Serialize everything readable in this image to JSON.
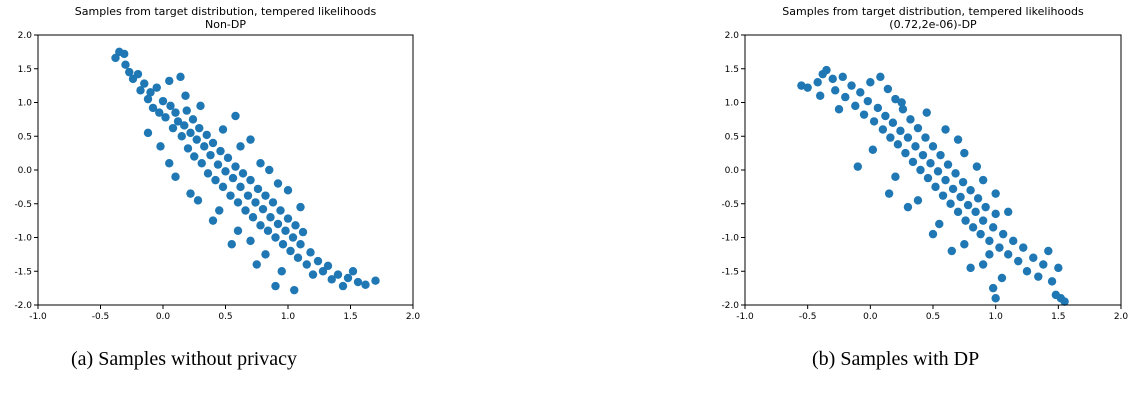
{
  "figure": {
    "captions": [
      {
        "tag": "(a)",
        "text": "Samples without privacy"
      },
      {
        "tag": "(b)",
        "text": "Samples with DP"
      }
    ]
  },
  "chart_data": [
    {
      "type": "scatter",
      "title": "Samples from target distribution, tempered likelihoods",
      "subtitle": "Non-DP",
      "xlabel": "",
      "ylabel": "",
      "xlim": [
        -1.0,
        2.0
      ],
      "ylim": [
        -2.0,
        2.0
      ],
      "xticks": [
        "-1.0",
        "-0.5",
        "0.0",
        "0.5",
        "1.0",
        "1.5",
        "2.0"
      ],
      "yticks": [
        "2.0",
        "1.5",
        "1.0",
        "0.5",
        "0.0",
        "-0.5",
        "-1.0",
        "-1.5",
        "-2.0"
      ],
      "grid": false,
      "marker_color": "#1f77b4",
      "series": [
        {
          "points": [
            [
              -0.38,
              1.66
            ],
            [
              -0.35,
              1.75
            ],
            [
              -0.31,
              1.72
            ],
            [
              -0.3,
              1.56
            ],
            [
              -0.27,
              1.45
            ],
            [
              -0.24,
              1.35
            ],
            [
              -0.2,
              1.42
            ],
            [
              -0.18,
              1.18
            ],
            [
              -0.15,
              1.28
            ],
            [
              -0.12,
              1.05
            ],
            [
              -0.1,
              1.15
            ],
            [
              -0.08,
              0.92
            ],
            [
              -0.05,
              1.22
            ],
            [
              -0.03,
              0.85
            ],
            [
              0.0,
              1.02
            ],
            [
              0.02,
              0.78
            ],
            [
              0.05,
              1.32
            ],
            [
              0.06,
              0.95
            ],
            [
              0.08,
              0.62
            ],
            [
              0.1,
              0.85
            ],
            [
              0.12,
              0.72
            ],
            [
              0.14,
              1.38
            ],
            [
              0.15,
              0.5
            ],
            [
              0.17,
              0.66
            ],
            [
              0.19,
              0.88
            ],
            [
              0.2,
              0.32
            ],
            [
              0.22,
              0.55
            ],
            [
              0.24,
              0.75
            ],
            [
              0.25,
              0.2
            ],
            [
              0.27,
              0.45
            ],
            [
              0.29,
              0.62
            ],
            [
              0.31,
              0.1
            ],
            [
              0.33,
              0.35
            ],
            [
              0.35,
              0.52
            ],
            [
              0.36,
              -0.05
            ],
            [
              0.38,
              0.22
            ],
            [
              0.4,
              0.4
            ],
            [
              0.42,
              -0.15
            ],
            [
              0.44,
              0.08
            ],
            [
              0.46,
              0.28
            ],
            [
              0.48,
              -0.25
            ],
            [
              0.5,
              -0.02
            ],
            [
              0.52,
              0.18
            ],
            [
              0.54,
              -0.38
            ],
            [
              0.56,
              -0.12
            ],
            [
              0.58,
              0.05
            ],
            [
              0.6,
              -0.48
            ],
            [
              0.62,
              -0.25
            ],
            [
              0.64,
              -0.05
            ],
            [
              0.66,
              -0.6
            ],
            [
              0.68,
              -0.38
            ],
            [
              0.7,
              -0.15
            ],
            [
              0.72,
              -0.7
            ],
            [
              0.74,
              -0.48
            ],
            [
              0.76,
              -0.28
            ],
            [
              0.78,
              -0.82
            ],
            [
              0.8,
              -0.58
            ],
            [
              0.82,
              -0.38
            ],
            [
              0.84,
              -0.9
            ],
            [
              0.86,
              -0.7
            ],
            [
              0.88,
              -0.48
            ],
            [
              0.9,
              -1.0
            ],
            [
              0.92,
              -0.8
            ],
            [
              0.94,
              -0.6
            ],
            [
              0.96,
              -1.1
            ],
            [
              0.98,
              -0.9
            ],
            [
              1.0,
              -0.72
            ],
            [
              1.02,
              -1.2
            ],
            [
              1.04,
              -1.0
            ],
            [
              1.06,
              -0.82
            ],
            [
              1.08,
              -1.3
            ],
            [
              1.1,
              -1.1
            ],
            [
              1.12,
              -0.92
            ],
            [
              1.15,
              -1.4
            ],
            [
              1.18,
              -1.22
            ],
            [
              1.2,
              -1.55
            ],
            [
              1.24,
              -1.35
            ],
            [
              1.28,
              -1.5
            ],
            [
              1.32,
              -1.42
            ],
            [
              1.35,
              -1.62
            ],
            [
              1.4,
              -1.55
            ],
            [
              1.44,
              -1.72
            ],
            [
              1.48,
              -1.6
            ],
            [
              1.52,
              -1.5
            ],
            [
              1.56,
              -1.66
            ],
            [
              1.62,
              -1.7
            ],
            [
              1.7,
              -1.64
            ],
            [
              0.9,
              -1.72
            ],
            [
              1.05,
              -1.78
            ],
            [
              0.75,
              -1.4
            ],
            [
              0.55,
              -1.1
            ],
            [
              0.4,
              -0.75
            ],
            [
              0.22,
              -0.35
            ],
            [
              0.05,
              0.1
            ],
            [
              -0.12,
              0.55
            ],
            [
              0.58,
              0.8
            ],
            [
              0.48,
              0.6
            ],
            [
              0.62,
              0.35
            ],
            [
              0.78,
              0.1
            ],
            [
              0.92,
              -0.2
            ],
            [
              1.0,
              -0.3
            ],
            [
              1.1,
              -0.55
            ],
            [
              0.3,
              0.95
            ],
            [
              0.18,
              1.1
            ],
            [
              0.7,
              0.45
            ],
            [
              0.85,
              0.0
            ],
            [
              -0.02,
              0.35
            ],
            [
              0.1,
              -0.1
            ],
            [
              0.28,
              -0.45
            ],
            [
              0.45,
              -0.6
            ],
            [
              0.6,
              -0.9
            ],
            [
              0.7,
              -1.05
            ],
            [
              0.82,
              -1.25
            ],
            [
              0.95,
              -1.5
            ]
          ]
        }
      ]
    },
    {
      "type": "scatter",
      "title": "Samples from target distribution, tempered likelihoods",
      "subtitle": "(0.72,2e-06)-DP",
      "xlabel": "",
      "ylabel": "",
      "xlim": [
        -1.0,
        2.0
      ],
      "ylim": [
        -2.0,
        2.0
      ],
      "xticks": [
        "-1.0",
        "-0.5",
        "0.0",
        "0.5",
        "1.0",
        "1.5",
        "2.0"
      ],
      "yticks": [
        "2.0",
        "1.5",
        "1.0",
        "0.5",
        "0.0",
        "-0.5",
        "-1.0",
        "-1.5",
        "-2.0"
      ],
      "grid": false,
      "marker_color": "#1f77b4",
      "series": [
        {
          "points": [
            [
              -0.55,
              1.25
            ],
            [
              -0.5,
              1.22
            ],
            [
              -0.42,
              1.3
            ],
            [
              -0.38,
              1.42
            ],
            [
              -0.35,
              1.48
            ],
            [
              -0.3,
              1.35
            ],
            [
              -0.28,
              1.18
            ],
            [
              -0.22,
              1.38
            ],
            [
              -0.2,
              1.08
            ],
            [
              -0.15,
              1.25
            ],
            [
              -0.12,
              0.95
            ],
            [
              -0.08,
              1.15
            ],
            [
              -0.05,
              0.82
            ],
            [
              -0.02,
              1.02
            ],
            [
              0.0,
              1.3
            ],
            [
              0.03,
              0.72
            ],
            [
              0.06,
              0.92
            ],
            [
              0.08,
              1.38
            ],
            [
              0.1,
              0.6
            ],
            [
              0.12,
              0.8
            ],
            [
              0.14,
              1.2
            ],
            [
              0.16,
              0.48
            ],
            [
              0.18,
              0.7
            ],
            [
              0.2,
              1.05
            ],
            [
              0.22,
              0.38
            ],
            [
              0.24,
              0.58
            ],
            [
              0.26,
              0.9
            ],
            [
              0.28,
              0.25
            ],
            [
              0.3,
              0.48
            ],
            [
              0.32,
              0.75
            ],
            [
              0.34,
              0.12
            ],
            [
              0.36,
              0.35
            ],
            [
              0.38,
              0.62
            ],
            [
              0.4,
              0.0
            ],
            [
              0.42,
              0.22
            ],
            [
              0.44,
              0.48
            ],
            [
              0.46,
              -0.12
            ],
            [
              0.48,
              0.1
            ],
            [
              0.5,
              0.35
            ],
            [
              0.52,
              -0.25
            ],
            [
              0.54,
              -0.02
            ],
            [
              0.56,
              0.22
            ],
            [
              0.58,
              -0.38
            ],
            [
              0.6,
              -0.15
            ],
            [
              0.62,
              0.08
            ],
            [
              0.64,
              -0.5
            ],
            [
              0.66,
              -0.28
            ],
            [
              0.68,
              -0.05
            ],
            [
              0.7,
              -0.62
            ],
            [
              0.72,
              -0.4
            ],
            [
              0.74,
              -0.18
            ],
            [
              0.76,
              -0.75
            ],
            [
              0.78,
              -0.52
            ],
            [
              0.8,
              -0.3
            ],
            [
              0.82,
              -0.85
            ],
            [
              0.84,
              -0.62
            ],
            [
              0.86,
              -0.42
            ],
            [
              0.88,
              -0.95
            ],
            [
              0.9,
              -0.75
            ],
            [
              0.92,
              -0.55
            ],
            [
              0.95,
              -1.05
            ],
            [
              0.98,
              -0.85
            ],
            [
              1.0,
              -0.65
            ],
            [
              1.03,
              -1.15
            ],
            [
              1.06,
              -0.95
            ],
            [
              1.1,
              -1.25
            ],
            [
              1.14,
              -1.05
            ],
            [
              1.18,
              -1.35
            ],
            [
              1.22,
              -1.15
            ],
            [
              1.25,
              -1.5
            ],
            [
              1.3,
              -1.3
            ],
            [
              1.34,
              -1.58
            ],
            [
              1.38,
              -1.4
            ],
            [
              1.42,
              -1.2
            ],
            [
              1.45,
              -1.65
            ],
            [
              1.5,
              -1.45
            ],
            [
              1.52,
              -1.9
            ],
            [
              1.55,
              -1.95
            ],
            [
              1.48,
              -1.85
            ],
            [
              1.0,
              -1.9
            ],
            [
              0.98,
              -1.75
            ],
            [
              1.05,
              -1.6
            ],
            [
              0.9,
              -1.4
            ],
            [
              0.75,
              -1.1
            ],
            [
              0.55,
              -0.8
            ],
            [
              0.38,
              -0.45
            ],
            [
              0.2,
              -0.1
            ],
            [
              0.02,
              0.3
            ],
            [
              -0.1,
              0.05
            ],
            [
              0.6,
              0.6
            ],
            [
              0.7,
              0.45
            ],
            [
              0.75,
              0.25
            ],
            [
              0.85,
              0.05
            ],
            [
              0.9,
              -0.15
            ],
            [
              1.0,
              -0.35
            ],
            [
              1.1,
              -0.62
            ],
            [
              0.25,
              1.0
            ],
            [
              0.45,
              0.85
            ],
            [
              0.15,
              -0.35
            ],
            [
              0.3,
              -0.55
            ],
            [
              0.5,
              -0.95
            ],
            [
              0.65,
              -1.2
            ],
            [
              0.8,
              -1.45
            ],
            [
              0.95,
              -1.25
            ],
            [
              -0.25,
              0.9
            ],
            [
              -0.4,
              1.1
            ]
          ]
        }
      ]
    }
  ]
}
